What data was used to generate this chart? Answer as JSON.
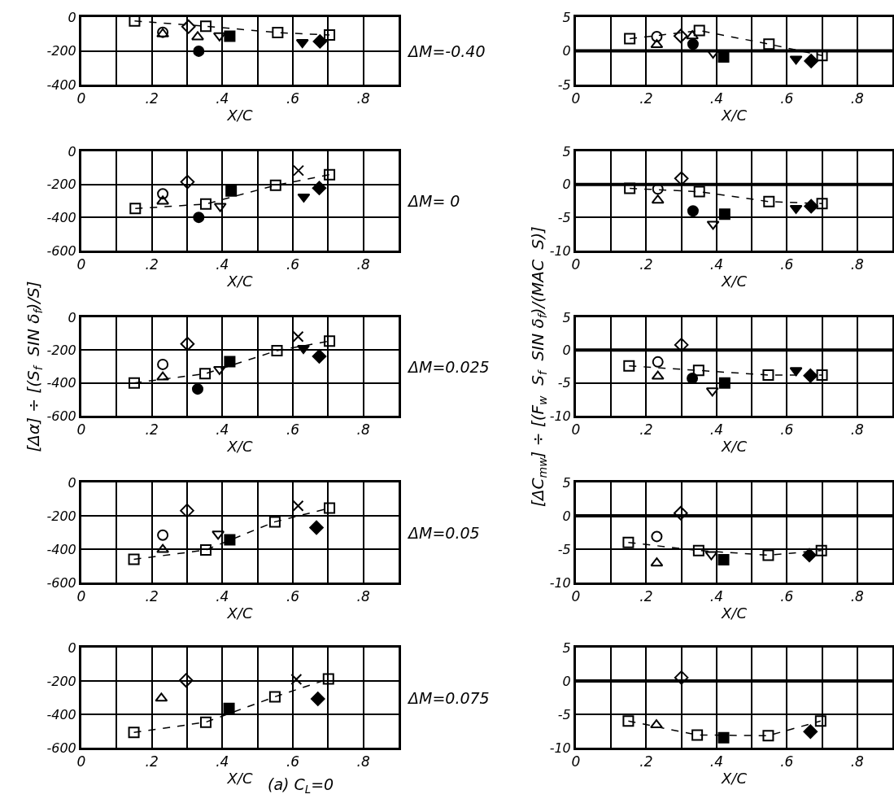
{
  "chart_data": [
    {
      "type": "scatter",
      "xlabel": "X/C",
      "annotations": [
        "ΔM=-0.40"
      ],
      "xlim": [
        0,
        0.9
      ],
      "ylim": [
        -400,
        0
      ],
      "yticks": [
        0,
        -200,
        -400
      ],
      "grid": true,
      "xticks": [
        0,
        {
          "value": 0.1,
          "label": null
        },
        {
          "value": 0.2,
          "label": ".2"
        },
        {
          "value": 0.3,
          "label": null
        },
        {
          "value": 0.4,
          "label": ".4"
        },
        {
          "value": 0.5,
          "label": null
        },
        {
          "value": 0.6,
          "label": ".6"
        },
        {
          "value": 0.7,
          "label": null
        },
        {
          "value": 0.8,
          "label": ".8"
        },
        {
          "value": 0.9,
          "label": null
        }
      ],
      "series": [
        {
          "type": "line",
          "line_style": "dashed",
          "marker": "square",
          "color": "#000000",
          "x": [
            0.151,
            0.353,
            0.557,
            0.704
          ],
          "values": [
            -23,
            -54,
            -92,
            -106
          ]
        },
        {
          "marker": "circle",
          "color": "#000000",
          "x": [
            0.231
          ],
          "values": [
            -90
          ]
        },
        {
          "marker": "triangle",
          "color": "#000000",
          "x": [
            0.231,
            0.33
          ],
          "values": [
            -100,
            -118
          ]
        },
        {
          "marker": "diamond",
          "color": "#000000",
          "x": [
            0.304
          ],
          "values": [
            -57
          ]
        },
        {
          "marker": "circle-filled",
          "color": "#000000",
          "x": [
            0.333
          ],
          "values": [
            -202
          ]
        },
        {
          "marker": "triangle-down",
          "color": "#000000",
          "x": [
            0.392
          ],
          "values": [
            -110
          ]
        },
        {
          "marker": "square-filled",
          "color": "#000000",
          "x": [
            0.421
          ],
          "values": [
            -113
          ]
        },
        {
          "marker": "triangle-down-filled",
          "color": "#000000",
          "x": [
            0.627
          ],
          "values": [
            -150
          ]
        },
        {
          "marker": "diamond-filled",
          "color": "#000000",
          "x": [
            0.677
          ],
          "values": [
            -144
          ]
        }
      ]
    },
    {
      "type": "scatter",
      "xlabel": "X/C",
      "xlim": [
        0,
        0.9
      ],
      "ylim": [
        -5,
        5
      ],
      "yticks": [
        5,
        0,
        -5
      ],
      "grid": true,
      "xticks": [
        0,
        {
          "value": 0.1,
          "label": null
        },
        {
          "value": 0.2,
          "label": ".2"
        },
        {
          "value": 0.3,
          "label": null
        },
        {
          "value": 0.4,
          "label": ".4"
        },
        {
          "value": 0.5,
          "label": null
        },
        {
          "value": 0.6,
          "label": ".6"
        },
        {
          "value": 0.7,
          "label": null
        },
        {
          "value": 0.8,
          "label": ".8"
        },
        {
          "value": 0.9,
          "label": null
        }
      ],
      "ref_lines": [
        {
          "axis": "y",
          "value": 0,
          "color": "#000000"
        }
      ],
      "series": [
        {
          "type": "line",
          "line_style": "dashed",
          "marker": "square",
          "color": "#000000",
          "x": [
            0.153,
            0.351,
            0.549,
            0.7
          ],
          "values": [
            1.8,
            3.0,
            1.0,
            -0.7
          ]
        },
        {
          "marker": "circle",
          "color": "#000000",
          "x": [
            0.23
          ],
          "values": [
            2.1
          ]
        },
        {
          "marker": "triangle",
          "color": "#000000",
          "x": [
            0.23,
            0.331
          ],
          "values": [
            0.9,
            2.2
          ]
        },
        {
          "marker": "diamond",
          "color": "#000000",
          "x": [
            0.298
          ],
          "values": [
            2.2
          ]
        },
        {
          "marker": "circle-filled",
          "color": "#000000",
          "x": [
            0.333
          ],
          "values": [
            1.0
          ]
        },
        {
          "marker": "triangle-down",
          "color": "#000000",
          "x": [
            0.39
          ],
          "values": [
            -0.3
          ]
        },
        {
          "marker": "square-filled",
          "color": "#000000",
          "x": [
            0.42
          ],
          "values": [
            -0.9
          ]
        },
        {
          "marker": "triangle-down-filled",
          "color": "#000000",
          "x": [
            0.626
          ],
          "values": [
            -1.2
          ]
        },
        {
          "marker": "diamond-filled",
          "color": "#000000",
          "x": [
            0.669
          ],
          "values": [
            -1.5
          ]
        }
      ]
    },
    {
      "type": "scatter",
      "xlabel": "X/C",
      "annotations": [
        "ΔM= 0"
      ],
      "xlim": [
        0,
        0.9
      ],
      "ylim": [
        -600,
        0
      ],
      "yticks": [
        0,
        -200,
        -400,
        -600
      ],
      "grid": true,
      "xticks": [
        0,
        {
          "value": 0.1,
          "label": null
        },
        {
          "value": 0.2,
          "label": ".2"
        },
        {
          "value": 0.3,
          "label": null
        },
        {
          "value": 0.4,
          "label": ".4"
        },
        {
          "value": 0.5,
          "label": null
        },
        {
          "value": 0.6,
          "label": ".6"
        },
        {
          "value": 0.7,
          "label": null
        },
        {
          "value": 0.8,
          "label": ".8"
        },
        {
          "value": 0.9,
          "label": null
        }
      ],
      "series": [
        {
          "type": "line",
          "line_style": "dashed",
          "marker": "square",
          "color": "#000000",
          "x": [
            0.153,
            0.353,
            0.551,
            0.704
          ],
          "values": [
            -346,
            -319,
            -205,
            -141
          ]
        },
        {
          "marker": "circle",
          "color": "#000000",
          "x": [
            0.231
          ],
          "values": [
            -257
          ]
        },
        {
          "marker": "triangle",
          "color": "#000000",
          "x": [
            0.231
          ],
          "values": [
            -302
          ]
        },
        {
          "marker": "diamond",
          "color": "#000000",
          "x": [
            0.301
          ],
          "values": [
            -185
          ]
        },
        {
          "marker": "circle-filled",
          "color": "#000000",
          "x": [
            0.333
          ],
          "values": [
            -399
          ]
        },
        {
          "marker": "triangle-down",
          "color": "#000000",
          "x": [
            0.394
          ],
          "values": [
            -332
          ]
        },
        {
          "marker": "square-filled",
          "color": "#000000",
          "x": [
            0.425
          ],
          "values": [
            -240
          ]
        },
        {
          "marker": "cross",
          "color": "#000000",
          "x": [
            0.616
          ],
          "values": [
            -116
          ]
        },
        {
          "marker": "triangle-down-filled",
          "color": "#000000",
          "x": [
            0.631
          ],
          "values": [
            -275
          ]
        },
        {
          "marker": "diamond-filled",
          "color": "#000000",
          "x": [
            0.675
          ],
          "values": [
            -222
          ]
        }
      ]
    },
    {
      "type": "scatter",
      "xlabel": "X/C",
      "xlim": [
        0,
        0.9
      ],
      "ylim": [
        -10,
        5
      ],
      "yticks": [
        5,
        0,
        -5,
        -10
      ],
      "grid": true,
      "xticks": [
        0,
        {
          "value": 0.1,
          "label": null
        },
        {
          "value": 0.2,
          "label": ".2"
        },
        {
          "value": 0.3,
          "label": null
        },
        {
          "value": 0.4,
          "label": ".4"
        },
        {
          "value": 0.5,
          "label": null
        },
        {
          "value": 0.6,
          "label": ".6"
        },
        {
          "value": 0.7,
          "label": null
        },
        {
          "value": 0.8,
          "label": ".8"
        },
        {
          "value": 0.9,
          "label": null
        }
      ],
      "ref_lines": [
        {
          "axis": "y",
          "value": 0,
          "color": "#000000"
        }
      ],
      "series": [
        {
          "type": "line",
          "line_style": "dashed",
          "marker": "square",
          "color": "#000000",
          "x": [
            0.153,
            0.351,
            0.549,
            0.7
          ],
          "values": [
            -0.6,
            -1.1,
            -2.6,
            -2.9
          ]
        },
        {
          "marker": "circle",
          "color": "#000000",
          "x": [
            0.233
          ],
          "values": [
            -0.7
          ]
        },
        {
          "marker": "triangle",
          "color": "#000000",
          "x": [
            0.233
          ],
          "values": [
            -2.4
          ]
        },
        {
          "marker": "diamond",
          "color": "#000000",
          "x": [
            0.3
          ],
          "values": [
            0.9
          ]
        },
        {
          "marker": "circle-filled",
          "color": "#000000",
          "x": [
            0.333
          ],
          "values": [
            -4.0
          ]
        },
        {
          "marker": "triangle-down",
          "color": "#000000",
          "x": [
            0.39
          ],
          "values": [
            -6.0
          ]
        },
        {
          "marker": "square-filled",
          "color": "#000000",
          "x": [
            0.423
          ],
          "values": [
            -4.5
          ]
        },
        {
          "marker": "triangle-down-filled",
          "color": "#000000",
          "x": [
            0.626
          ],
          "values": [
            -3.6
          ]
        },
        {
          "marker": "diamond-filled",
          "color": "#000000",
          "x": [
            0.669
          ],
          "values": [
            -3.3
          ]
        }
      ]
    },
    {
      "type": "scatter",
      "xlabel": "X/C",
      "ylabel": "[Δα] ÷ [(S$_{f}$  SIN δ$_{f}$)/S]",
      "annotations": [
        "ΔM=0.025"
      ],
      "xlim": [
        0,
        0.9
      ],
      "ylim": [
        -600,
        0
      ],
      "yticks": [
        0,
        -200,
        -400,
        -600
      ],
      "grid": true,
      "xticks": [
        0,
        {
          "value": 0.1,
          "label": null
        },
        {
          "value": 0.2,
          "label": ".2"
        },
        {
          "value": 0.3,
          "label": null
        },
        {
          "value": 0.4,
          "label": ".4"
        },
        {
          "value": 0.5,
          "label": null
        },
        {
          "value": 0.6,
          "label": ".6"
        },
        {
          "value": 0.7,
          "label": null
        },
        {
          "value": 0.8,
          "label": ".8"
        },
        {
          "value": 0.9,
          "label": null
        }
      ],
      "series": [
        {
          "type": "line",
          "line_style": "dashed",
          "marker": "square",
          "color": "#000000",
          "x": [
            0.15,
            0.351,
            0.555,
            0.704
          ],
          "values": [
            -400,
            -344,
            -203,
            -145
          ]
        },
        {
          "marker": "circle",
          "color": "#000000",
          "x": [
            0.231
          ],
          "values": [
            -287
          ]
        },
        {
          "marker": "triangle",
          "color": "#000000",
          "x": [
            0.231
          ],
          "values": [
            -365
          ]
        },
        {
          "marker": "diamond",
          "color": "#000000",
          "x": [
            0.301
          ],
          "values": [
            -162
          ]
        },
        {
          "marker": "circle-filled",
          "color": "#000000",
          "x": [
            0.33
          ],
          "values": [
            -437
          ]
        },
        {
          "marker": "triangle-down",
          "color": "#000000",
          "x": [
            0.392
          ],
          "values": [
            -317
          ]
        },
        {
          "marker": "square-filled",
          "color": "#000000",
          "x": [
            0.421
          ],
          "values": [
            -270
          ]
        },
        {
          "marker": "cross",
          "color": "#000000",
          "x": [
            0.615
          ],
          "values": [
            -118
          ]
        },
        {
          "marker": "triangle-down-filled",
          "color": "#000000",
          "x": [
            0.63
          ],
          "values": [
            -189
          ]
        },
        {
          "marker": "diamond-filled",
          "color": "#000000",
          "x": [
            0.675
          ],
          "values": [
            -238
          ]
        }
      ]
    },
    {
      "type": "scatter",
      "xlabel": "X/C",
      "ylabel": "[ΔC$_{mw}$] ÷ [(F$_{w}$  S$_{f}$  SIN δ$_{f}$)/(MAC  S)]",
      "xlim": [
        0,
        0.9
      ],
      "ylim": [
        -10,
        5
      ],
      "yticks": [
        5,
        0,
        -5,
        -10
      ],
      "grid": true,
      "xticks": [
        0,
        {
          "value": 0.1,
          "label": null
        },
        {
          "value": 0.2,
          "label": ".2"
        },
        {
          "value": 0.3,
          "label": null
        },
        {
          "value": 0.4,
          "label": ".4"
        },
        {
          "value": 0.5,
          "label": null
        },
        {
          "value": 0.6,
          "label": ".6"
        },
        {
          "value": 0.7,
          "label": null
        },
        {
          "value": 0.8,
          "label": ".8"
        },
        {
          "value": 0.9,
          "label": null
        }
      ],
      "ref_lines": [
        {
          "axis": "y",
          "value": 0,
          "color": "#000000"
        }
      ],
      "series": [
        {
          "type": "line",
          "line_style": "dashed",
          "marker": "square",
          "color": "#000000",
          "x": [
            0.151,
            0.349,
            0.547,
            0.7
          ],
          "values": [
            -2.4,
            -3.1,
            -3.8,
            -3.8
          ]
        },
        {
          "marker": "circle",
          "color": "#000000",
          "x": [
            0.233
          ],
          "values": [
            -1.8
          ]
        },
        {
          "marker": "triangle",
          "color": "#000000",
          "x": [
            0.233
          ],
          "values": [
            -4.0
          ]
        },
        {
          "marker": "diamond",
          "color": "#000000",
          "x": [
            0.3
          ],
          "values": [
            0.8
          ]
        },
        {
          "marker": "circle-filled",
          "color": "#000000",
          "x": [
            0.331
          ],
          "values": [
            -4.3
          ]
        },
        {
          "marker": "triangle-down",
          "color": "#000000",
          "x": [
            0.388
          ],
          "values": [
            -6.2
          ]
        },
        {
          "marker": "square-filled",
          "color": "#000000",
          "x": [
            0.423
          ],
          "values": [
            -5.0
          ]
        },
        {
          "marker": "triangle-down-filled",
          "color": "#000000",
          "x": [
            0.626
          ],
          "values": [
            -3.1
          ]
        },
        {
          "marker": "diamond-filled",
          "color": "#000000",
          "x": [
            0.667
          ],
          "values": [
            -3.9
          ]
        }
      ]
    },
    {
      "type": "scatter",
      "xlabel": "X/C",
      "annotations": [
        "ΔM=0.05"
      ],
      "xlim": [
        0,
        0.9
      ],
      "ylim": [
        -600,
        0
      ],
      "yticks": [
        0,
        -200,
        -400,
        -600
      ],
      "grid": true,
      "xticks": [
        0,
        {
          "value": 0.1,
          "label": null
        },
        {
          "value": 0.2,
          "label": ".2"
        },
        {
          "value": 0.3,
          "label": null
        },
        {
          "value": 0.4,
          "label": ".4"
        },
        {
          "value": 0.5,
          "label": null
        },
        {
          "value": 0.6,
          "label": ".6"
        },
        {
          "value": 0.7,
          "label": null
        },
        {
          "value": 0.8,
          "label": ".8"
        },
        {
          "value": 0.9,
          "label": null
        }
      ],
      "series": [
        {
          "type": "line",
          "line_style": "dashed",
          "marker": "square",
          "color": "#000000",
          "x": [
            0.149,
            0.353,
            0.549,
            0.704
          ],
          "values": [
            -461,
            -405,
            -236,
            -154
          ]
        },
        {
          "marker": "circle",
          "color": "#000000",
          "x": [
            0.231
          ],
          "values": [
            -316
          ]
        },
        {
          "marker": "triangle",
          "color": "#000000",
          "x": [
            0.231
          ],
          "values": [
            -403
          ]
        },
        {
          "marker": "diamond",
          "color": "#000000",
          "x": [
            0.3
          ],
          "values": [
            -169
          ]
        },
        {
          "marker": "triangle-down",
          "color": "#000000",
          "x": [
            0.388
          ],
          "values": [
            -309
          ]
        },
        {
          "marker": "square-filled",
          "color": "#000000",
          "x": [
            0.421
          ],
          "values": [
            -344
          ]
        },
        {
          "marker": "cross",
          "color": "#000000",
          "x": [
            0.615
          ],
          "values": [
            -140
          ]
        },
        {
          "marker": "diamond-filled",
          "color": "#000000",
          "x": [
            0.667
          ],
          "values": [
            -271
          ]
        }
      ]
    },
    {
      "type": "scatter",
      "xlabel": "X/C",
      "xlim": [
        0,
        0.9
      ],
      "ylim": [
        -10,
        5
      ],
      "yticks": [
        5,
        0,
        -5,
        -10
      ],
      "grid": true,
      "xticks": [
        0,
        {
          "value": 0.1,
          "label": null
        },
        {
          "value": 0.2,
          "label": ".2"
        },
        {
          "value": 0.3,
          "label": null
        },
        {
          "value": 0.4,
          "label": ".4"
        },
        {
          "value": 0.5,
          "label": null
        },
        {
          "value": 0.6,
          "label": ".6"
        },
        {
          "value": 0.7,
          "label": null
        },
        {
          "value": 0.8,
          "label": ".8"
        },
        {
          "value": 0.9,
          "label": null
        }
      ],
      "ref_lines": [
        {
          "axis": "y",
          "value": 0,
          "color": "#000000"
        }
      ],
      "series": [
        {
          "type": "line",
          "line_style": "dashed",
          "marker": "square",
          "color": "#000000",
          "x": [
            0.149,
            0.349,
            0.547,
            0.698
          ],
          "values": [
            -4.0,
            -5.2,
            -5.9,
            -5.2
          ]
        },
        {
          "marker": "circle",
          "color": "#000000",
          "x": [
            0.23
          ],
          "values": [
            -3.1
          ]
        },
        {
          "marker": "triangle",
          "color": "#000000",
          "x": [
            0.23
          ],
          "values": [
            -7.1
          ]
        },
        {
          "marker": "diamond",
          "color": "#000000",
          "x": [
            0.298
          ],
          "values": [
            0.4
          ]
        },
        {
          "marker": "triangle-down",
          "color": "#000000",
          "x": [
            0.385
          ],
          "values": [
            -5.8
          ]
        },
        {
          "marker": "square-filled",
          "color": "#000000",
          "x": [
            0.42
          ],
          "values": [
            -6.6
          ]
        },
        {
          "marker": "diamond-filled",
          "color": "#000000",
          "x": [
            0.664
          ],
          "values": [
            -5.9
          ]
        }
      ]
    },
    {
      "type": "scatter",
      "xlabel": "X/C",
      "annotations": [
        "ΔM=0.075",
        "(a) C$_{L}$=0"
      ],
      "xlim": [
        0,
        0.9
      ],
      "ylim": [
        -600,
        0
      ],
      "yticks": [
        0,
        -200,
        -400,
        -600
      ],
      "grid": true,
      "xticks": [
        0,
        {
          "value": 0.1,
          "label": null
        },
        {
          "value": 0.2,
          "label": ".2"
        },
        {
          "value": 0.3,
          "label": null
        },
        {
          "value": 0.4,
          "label": ".4"
        },
        {
          "value": 0.5,
          "label": null
        },
        {
          "value": 0.6,
          "label": ".6"
        },
        {
          "value": 0.7,
          "label": null
        },
        {
          "value": 0.8,
          "label": ".8"
        },
        {
          "value": 0.9,
          "label": null
        }
      ],
      "series": [
        {
          "type": "line",
          "line_style": "dashed",
          "marker": "square",
          "color": "#000000",
          "x": [
            0.149,
            0.353,
            0.549,
            0.701
          ],
          "values": [
            -509,
            -447,
            -295,
            -188
          ]
        },
        {
          "marker": "triangle",
          "color": "#000000",
          "x": [
            0.227
          ],
          "values": [
            -304
          ]
        },
        {
          "marker": "diamond",
          "color": "#000000",
          "x": [
            0.297
          ],
          "values": [
            -196
          ]
        },
        {
          "marker": "square-filled",
          "color": "#000000",
          "x": [
            0.419
          ],
          "values": [
            -365
          ]
        },
        {
          "marker": "cross",
          "color": "#000000",
          "x": [
            0.61
          ],
          "values": [
            -190
          ]
        },
        {
          "marker": "diamond-filled",
          "color": "#000000",
          "x": [
            0.671
          ],
          "values": [
            -307
          ]
        }
      ]
    },
    {
      "type": "scatter",
      "xlabel": "X/C",
      "xlim": [
        0,
        0.9
      ],
      "ylim": [
        -10,
        5
      ],
      "yticks": [
        5,
        0,
        -5,
        -10
      ],
      "grid": true,
      "xticks": [
        0,
        {
          "value": 0.1,
          "label": null
        },
        {
          "value": 0.2,
          "label": ".2"
        },
        {
          "value": 0.3,
          "label": null
        },
        {
          "value": 0.4,
          "label": ".4"
        },
        {
          "value": 0.5,
          "label": null
        },
        {
          "value": 0.6,
          "label": ".6"
        },
        {
          "value": 0.7,
          "label": null
        },
        {
          "value": 0.8,
          "label": ".8"
        },
        {
          "value": 0.9,
          "label": null
        }
      ],
      "ref_lines": [
        {
          "axis": "y",
          "value": 0,
          "color": "#000000"
        }
      ],
      "series": [
        {
          "type": "line",
          "line_style": "dashed",
          "marker": "square",
          "color": "#000000",
          "x": [
            0.149,
            0.345,
            0.547,
            0.696
          ],
          "values": [
            -6.0,
            -8.1,
            -8.2,
            -6.0
          ]
        },
        {
          "marker": "triangle",
          "color": "#000000",
          "x": [
            0.229
          ],
          "values": [
            -6.6
          ]
        },
        {
          "marker": "diamond",
          "color": "#000000",
          "x": [
            0.3
          ],
          "values": [
            0.5
          ]
        },
        {
          "marker": "square-filled",
          "color": "#000000",
          "x": [
            0.42
          ],
          "values": [
            -8.5
          ]
        },
        {
          "marker": "diamond-filled",
          "color": "#000000",
          "x": [
            0.667
          ],
          "values": [
            -7.6
          ]
        }
      ]
    }
  ]
}
